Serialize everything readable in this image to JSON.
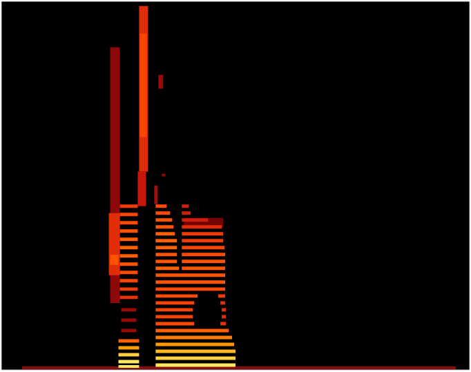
{
  "chart_data": {
    "type": "heatmap",
    "xlim": [
      0,
      680
    ],
    "ylim": [
      0,
      8000
    ],
    "tick_labels": false,
    "grid": false,
    "color_range": [
      0,
      100
    ],
    "cells": [
      [
        30,
        660,
        15,
        75,
        30
      ],
      [
        158,
        172,
        1455,
        7005,
        30
      ],
      [
        156,
        172,
        2055,
        3405,
        50
      ],
      [
        158,
        170,
        2280,
        2500,
        62
      ],
      [
        200,
        213,
        4305,
        7900,
        50
      ],
      [
        201,
        211,
        5055,
        7300,
        58
      ],
      [
        198,
        210,
        3555,
        4305,
        42
      ],
      [
        172,
        198,
        3518,
        3592,
        55
      ],
      [
        172,
        198,
        3338,
        3412,
        58
      ],
      [
        172,
        198,
        3158,
        3232,
        60
      ],
      [
        172,
        198,
        2978,
        3052,
        62
      ],
      [
        172,
        198,
        2798,
        2872,
        65
      ],
      [
        172,
        198,
        2618,
        2692,
        65
      ],
      [
        172,
        198,
        2438,
        2512,
        65
      ],
      [
        172,
        198,
        2258,
        2332,
        62
      ],
      [
        172,
        198,
        2078,
        2152,
        60
      ],
      [
        172,
        198,
        1898,
        1972,
        58
      ],
      [
        172,
        198,
        1718,
        1792,
        55
      ],
      [
        172,
        198,
        1538,
        1612,
        52
      ],
      [
        174,
        196,
        1268,
        1342,
        32
      ],
      [
        174,
        196,
        1043,
        1117,
        32
      ],
      [
        174,
        196,
        818,
        892,
        32
      ],
      [
        170,
        200,
        593,
        667,
        65
      ],
      [
        170,
        200,
        443,
        517,
        80
      ],
      [
        170,
        200,
        293,
        367,
        90
      ],
      [
        170,
        200,
        143,
        217,
        95
      ],
      [
        170,
        200,
        45,
        105,
        95
      ],
      [
        228,
        235,
        6105,
        6405,
        32
      ],
      [
        233,
        238,
        4200,
        4260,
        30
      ],
      [
        222,
        227,
        3600,
        4000,
        35
      ],
      [
        265,
        322,
        3100,
        3300,
        25
      ],
      [
        224,
        240,
        3518,
        3592,
        60
      ],
      [
        262,
        272,
        3518,
        3592,
        45
      ],
      [
        224,
        245,
        3368,
        3442,
        60
      ],
      [
        262,
        275,
        3368,
        3442,
        45
      ],
      [
        224,
        248,
        3218,
        3292,
        62
      ],
      [
        262,
        300,
        3218,
        3292,
        45
      ],
      [
        224,
        250,
        3068,
        3142,
        62
      ],
      [
        262,
        320,
        3068,
        3142,
        50
      ],
      [
        224,
        252,
        2918,
        2992,
        65
      ],
      [
        262,
        322,
        2918,
        2992,
        55
      ],
      [
        224,
        255,
        2768,
        2842,
        65
      ],
      [
        262,
        322,
        2768,
        2842,
        55
      ],
      [
        224,
        255,
        2618,
        2692,
        65
      ],
      [
        262,
        324,
        2618,
        2692,
        58
      ],
      [
        224,
        255,
        2468,
        2542,
        62
      ],
      [
        262,
        325,
        2468,
        2542,
        60
      ],
      [
        224,
        255,
        2318,
        2392,
        62
      ],
      [
        262,
        325,
        2318,
        2392,
        62
      ],
      [
        224,
        258,
        2168,
        2242,
        65
      ],
      [
        262,
        325,
        2168,
        2242,
        62
      ],
      [
        224,
        325,
        2018,
        2092,
        62
      ],
      [
        224,
        325,
        1868,
        1942,
        62
      ],
      [
        224,
        325,
        1718,
        1792,
        60
      ],
      [
        224,
        285,
        1568,
        1642,
        60
      ],
      [
        315,
        325,
        1568,
        1642,
        55
      ],
      [
        224,
        280,
        1418,
        1492,
        58
      ],
      [
        318,
        325,
        1418,
        1492,
        50
      ],
      [
        224,
        278,
        1268,
        1342,
        58
      ],
      [
        320,
        326,
        1268,
        1342,
        50
      ],
      [
        224,
        278,
        1118,
        1192,
        58
      ],
      [
        320,
        326,
        1118,
        1192,
        50
      ],
      [
        224,
        280,
        968,
        1042,
        60
      ],
      [
        318,
        326,
        968,
        1042,
        52
      ],
      [
        224,
        330,
        818,
        892,
        65
      ],
      [
        224,
        335,
        668,
        742,
        72
      ],
      [
        224,
        338,
        518,
        592,
        78
      ],
      [
        224,
        340,
        368,
        442,
        85
      ],
      [
        224,
        340,
        218,
        292,
        90
      ],
      [
        224,
        340,
        68,
        142,
        95
      ]
    ]
  }
}
